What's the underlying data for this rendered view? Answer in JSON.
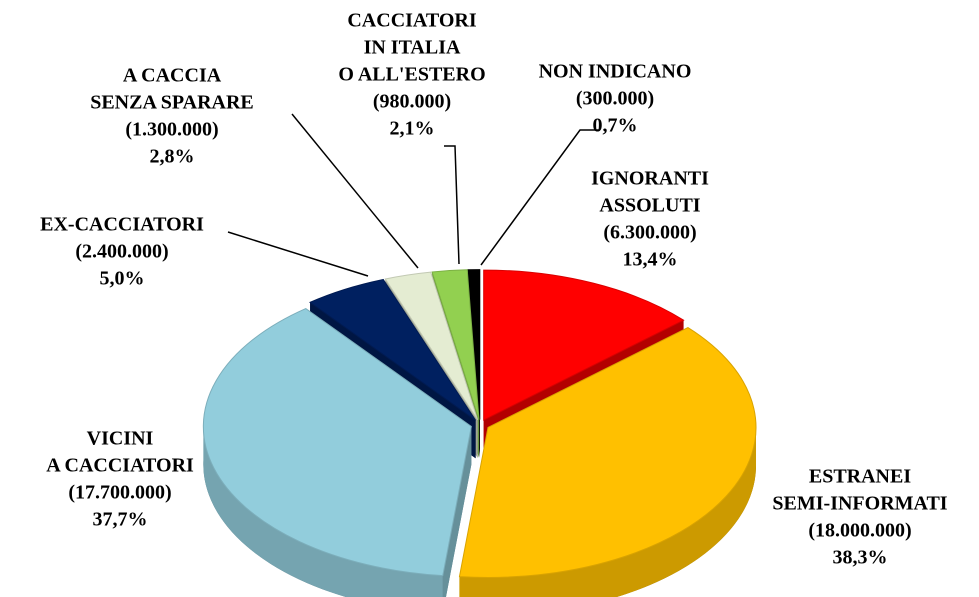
{
  "chart_data": {
    "type": "pie3d",
    "categories": [
      [
        "IGNORANTI",
        "ASSOLUTI"
      ],
      [
        "ESTRANEI",
        "SEMI-INFORMATI"
      ],
      [
        "VICINI",
        "A CACCIATORI"
      ],
      [
        "EX-CACCIATORI"
      ],
      [
        "A CACCIA",
        "SENZA SPARARE"
      ],
      [
        "CACCIATORI",
        "IN ITALIA",
        "O ALL'ESTERO"
      ],
      [
        "NON INDICANO"
      ]
    ],
    "values": [
      13.4,
      38.3,
      37.7,
      5.0,
      2.8,
      2.1,
      0.7
    ],
    "value_labels": [
      "13,4%",
      "38,3%",
      "37,7%",
      "5,0%",
      "2,8%",
      "2,1%",
      "0,7%"
    ],
    "counts": [
      6300000,
      18000000,
      17700000,
      2400000,
      1300000,
      980000,
      300000
    ],
    "count_labels": [
      "(6.300.000)",
      "(18.000.000)",
      "(17.700.000)",
      "(2.400.000)",
      "(1.300.000)",
      "(980.000)",
      "(300.000)"
    ],
    "colors": [
      "#ff0000",
      "#ffc000",
      "#92cddc",
      "#002060",
      "#e4ecd2",
      "#92d050",
      "#000000"
    ]
  }
}
